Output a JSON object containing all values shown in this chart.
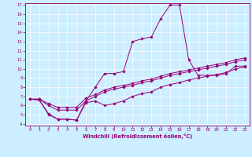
{
  "xlabel": "Windchill (Refroidissement éolien,°C)",
  "ylabel": "",
  "bg_color": "#cceeff",
  "line_color": "#990077",
  "xlim": [
    -0.5,
    23.5
  ],
  "ylim": [
    3.8,
    17.2
  ],
  "xticks": [
    0,
    1,
    2,
    3,
    4,
    5,
    6,
    7,
    8,
    9,
    10,
    11,
    12,
    13,
    14,
    15,
    16,
    17,
    18,
    19,
    20,
    21,
    22,
    23
  ],
  "yticks": [
    4,
    5,
    6,
    7,
    8,
    9,
    10,
    11,
    12,
    13,
    14,
    15,
    16,
    17
  ],
  "series": [
    [
      6.7,
      6.6,
      5.0,
      4.5,
      4.5,
      4.4,
      6.5,
      8.0,
      9.5,
      9.5,
      9.7,
      13.0,
      13.3,
      13.5,
      15.5,
      17.0,
      17.0,
      11.0,
      9.3,
      9.3,
      9.3,
      9.5,
      10.3,
      10.3
    ],
    [
      6.7,
      6.6,
      5.1,
      4.5,
      4.5,
      4.4,
      6.3,
      6.5,
      6.0,
      6.2,
      6.5,
      7.0,
      7.3,
      7.5,
      8.0,
      8.3,
      8.5,
      8.8,
      9.0,
      9.2,
      9.4,
      9.6,
      10.0,
      10.2
    ],
    [
      6.7,
      6.7,
      6.0,
      5.5,
      5.5,
      5.5,
      6.5,
      7.0,
      7.5,
      7.8,
      8.0,
      8.2,
      8.5,
      8.7,
      9.0,
      9.3,
      9.5,
      9.7,
      9.9,
      10.1,
      10.3,
      10.5,
      10.8,
      11.0
    ],
    [
      6.7,
      6.7,
      6.2,
      5.8,
      5.8,
      5.8,
      6.8,
      7.2,
      7.7,
      8.0,
      8.2,
      8.4,
      8.7,
      8.9,
      9.2,
      9.5,
      9.7,
      9.9,
      10.1,
      10.3,
      10.5,
      10.7,
      11.0,
      11.2
    ]
  ],
  "tick_fontsize": 3.8,
  "xlabel_fontsize": 4.8,
  "marker_size": 1.8,
  "linewidth": 0.7
}
